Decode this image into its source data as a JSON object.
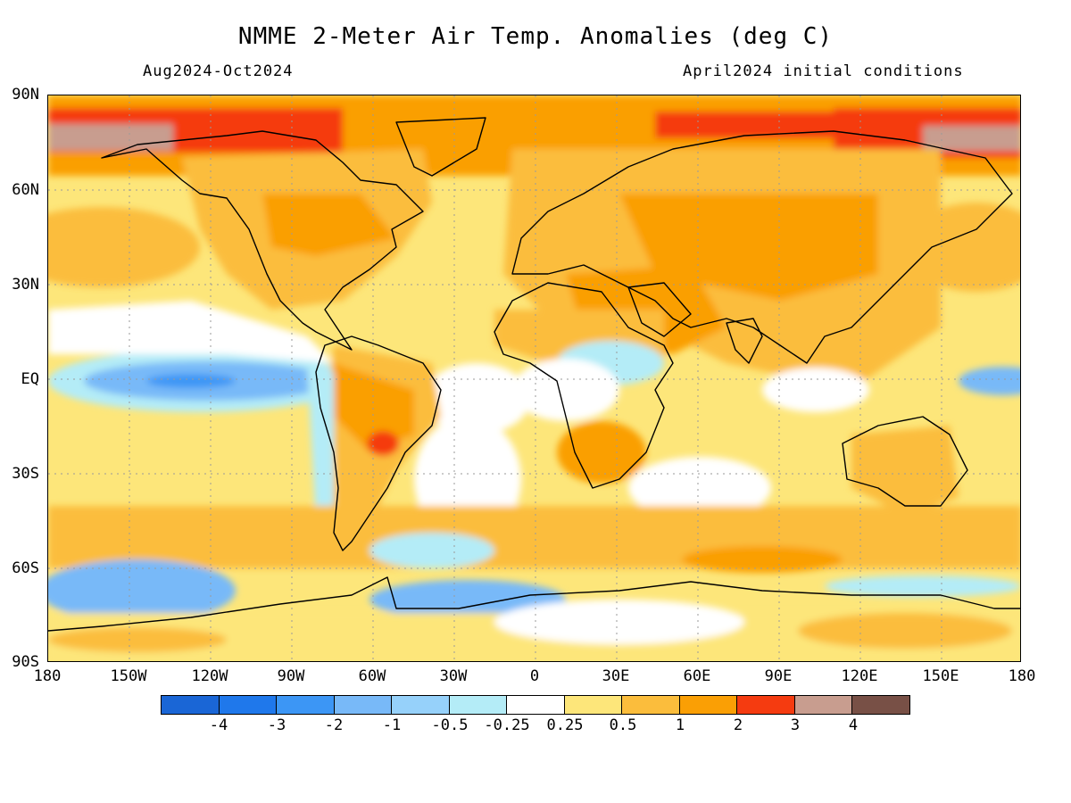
{
  "title": "NMME 2-Meter Air Temp. Anomalies (deg C)",
  "subtitle_left": "Aug2024-Oct2024",
  "subtitle_right": "April2024 initial conditions",
  "lat_labels": [
    "90N",
    "60N",
    "30N",
    "EQ",
    "30S",
    "60S",
    "90S"
  ],
  "lon_labels": [
    "180",
    "150W",
    "120W",
    "90W",
    "60W",
    "30W",
    "0",
    "30E",
    "60E",
    "90E",
    "120E",
    "150E",
    "180"
  ],
  "colorbar": {
    "colors": [
      "#1a66d6",
      "#1f78eb",
      "#3c96f5",
      "#78b9f8",
      "#96d1fa",
      "#b4ecf7",
      "#ffffff",
      "#fde67a",
      "#fbbd3c",
      "#fa9f05",
      "#f53b10",
      "#c89d8f",
      "#785046"
    ],
    "labels": [
      "-4",
      "-3",
      "-2",
      "-1",
      "-0.5",
      "-0.25",
      "0.25",
      "0.5",
      "1",
      "2",
      "3",
      "4"
    ]
  },
  "palette": {
    "ocean_base": "#fde67a",
    "land_warm": "#fbbd3c",
    "hot": "#fa9f05",
    "very_hot": "#f53b10",
    "extreme": "#c89d8f",
    "cool": "#b4ecf7",
    "cold": "#78b9f8",
    "colder": "#3c96f5",
    "neutral": "#ffffff"
  }
}
